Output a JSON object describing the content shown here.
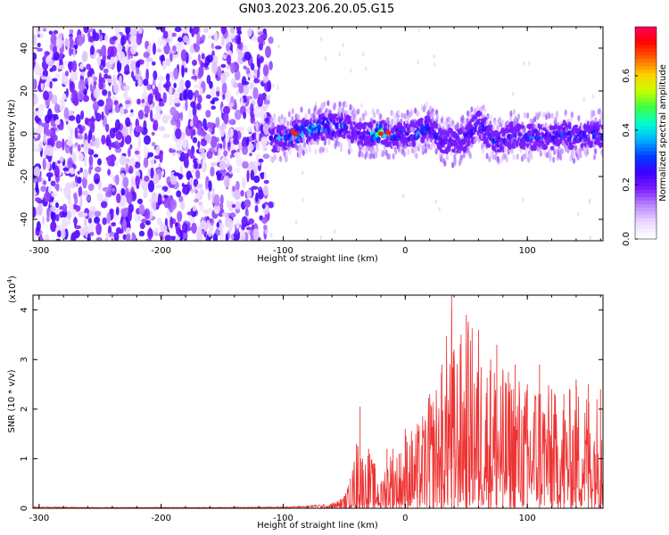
{
  "title": "GN03.2023.206.20.05.G15",
  "chart_data": [
    {
      "type": "heatmap",
      "xlabel": "Height of straight line (km)",
      "ylabel": "Frequency (Hz)",
      "xlim": [
        -305,
        162
      ],
      "ylim": [
        -50,
        50
      ],
      "x_ticks": [
        -300,
        -200,
        -100,
        0,
        100
      ],
      "y_ticks": [
        -40,
        -20,
        0,
        20,
        40
      ],
      "colorbar": {
        "label": "Normalized spectral amplitude",
        "range": [
          0.0,
          0.78
        ],
        "ticks": [
          0.0,
          0.2,
          0.4,
          0.6
        ],
        "tick_labels": [
          "0.0",
          "0.2",
          "0.4",
          "0.6"
        ]
      },
      "colormap": [
        "#ffffff",
        "#e9d6ff",
        "#b984ff",
        "#7a1cff",
        "#3a00ff",
        "#0040ff",
        "#00b4ff",
        "#00ffd0",
        "#40ff40",
        "#c8ff00",
        "#ffd000",
        "#ff6000",
        "#ff0000",
        "#ff0066"
      ],
      "regions": [
        {
          "name": "noise",
          "x_range": [
            -305,
            -110
          ],
          "freq_range": [
            -50,
            50
          ],
          "amplitude_level": "low (violet)"
        },
        {
          "name": "signal band",
          "x_range": [
            -110,
            162
          ],
          "center_frequency_hz": 0,
          "half_width_hz": 6,
          "peak_amplitude": 0.7
        }
      ],
      "ridge_x": [
        -110,
        -90,
        -70,
        -50,
        -40,
        -30,
        -20,
        -10,
        0,
        10,
        20,
        30,
        40,
        50,
        60,
        70,
        80,
        90,
        100,
        110,
        120,
        130,
        140,
        150,
        160
      ],
      "ridge_freq": [
        -3,
        0,
        3,
        4,
        0,
        0,
        1,
        -1,
        0,
        0,
        4,
        -3,
        -4,
        -2,
        5,
        -2,
        -3,
        0,
        -2,
        -1,
        -2,
        0,
        -2,
        -1,
        0
      ],
      "ridge_amplitude": [
        0.3,
        0.45,
        0.42,
        0.38,
        0.2,
        0.35,
        0.55,
        0.35,
        0.3,
        0.35,
        0.32,
        0.28,
        0.22,
        0.3,
        0.35,
        0.32,
        0.3,
        0.3,
        0.32,
        0.3,
        0.3,
        0.3,
        0.32,
        0.3,
        0.35
      ]
    },
    {
      "type": "line",
      "xlabel": "Height of straight line (km)",
      "ylabel": "SNR (10 * v/v)",
      "y_multiplier_label": "(x10",
      "y_multiplier_exponent": "4",
      "y_multiplier_close": ")",
      "xlim": [
        -305,
        162
      ],
      "ylim": [
        0,
        4.3
      ],
      "x_ticks": [
        -300,
        -200,
        -100,
        0,
        100
      ],
      "y_ticks": [
        0,
        1,
        2,
        3,
        4
      ],
      "series": [
        {
          "color": "#ee3333",
          "x": [
            -305,
            -250,
            -200,
            -150,
            -100,
            -80,
            -60,
            -50,
            -45,
            -40,
            -37,
            -35,
            -30,
            -25,
            -20,
            -15,
            -10,
            -5,
            0,
            10,
            20,
            30,
            38,
            40,
            50,
            60,
            70,
            75,
            80,
            90,
            100,
            110,
            120,
            130,
            140,
            150,
            160
          ],
          "y": [
            0.03,
            0.02,
            0.02,
            0.02,
            0.03,
            0.05,
            0.1,
            0.25,
            0.6,
            1.3,
            2.05,
            1.0,
            1.2,
            0.9,
            0.5,
            1.2,
            1.2,
            1.1,
            1.6,
            1.7,
            2.3,
            2.9,
            4.3,
            3.2,
            3.9,
            3.6,
            3.0,
            3.3,
            2.8,
            2.9,
            2.5,
            2.9,
            2.4,
            2.3,
            2.6,
            2.5,
            2.4
          ]
        }
      ]
    }
  ]
}
